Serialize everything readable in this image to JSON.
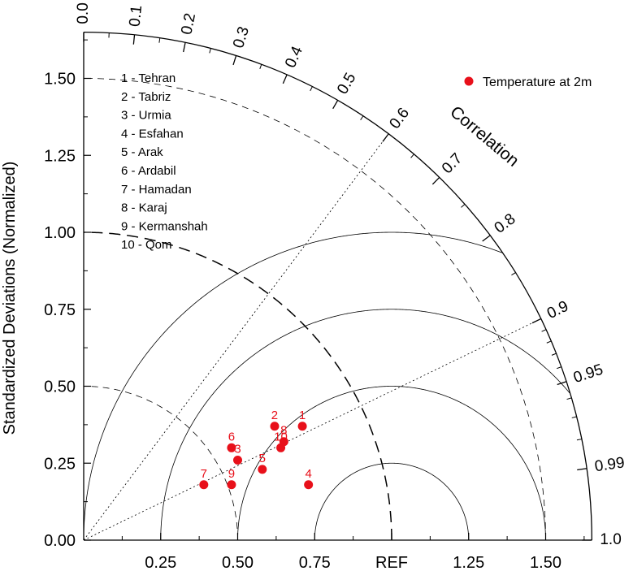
{
  "chart_data": {
    "type": "taylor",
    "ylabel": "Standardized Deviations (Normalized)",
    "angular_label": "Correlation",
    "ref_label": "REF",
    "ref_value": 1.0,
    "std_range": [
      0,
      1.65
    ],
    "y_ticks": [
      "0.00",
      "0.25",
      "0.50",
      "0.75",
      "1.00",
      "1.25",
      "1.50"
    ],
    "x_ticks": [
      "0.25",
      "0.50",
      "0.75",
      "REF",
      "1.25",
      "1.50"
    ],
    "correlation_ticks": [
      "0.0",
      "0.1",
      "0.2",
      "0.3",
      "0.4",
      "0.5",
      "0.6",
      "0.7",
      "0.8",
      "0.9",
      "0.95",
      "0.99",
      "1.0"
    ],
    "rms_arcs": [
      0.25,
      0.5,
      0.75,
      1.0
    ],
    "legend_text": "Temperature at 2m",
    "marker_color": "#e8101a",
    "stations": [
      "1 - Tehran",
      "2 - Tabriz",
      "3 - Urmia",
      "4 - Esfahan",
      "5 - Arak",
      "6 - Ardabil",
      "7 - Hamadan",
      "8 - Karaj",
      "9 - Kermanshah",
      "10 - Qom"
    ],
    "points": [
      {
        "id": "1",
        "x": 0.71,
        "y": 0.37
      },
      {
        "id": "2",
        "x": 0.62,
        "y": 0.37
      },
      {
        "id": "3",
        "x": 0.5,
        "y": 0.26
      },
      {
        "id": "4",
        "x": 0.73,
        "y": 0.18
      },
      {
        "id": "5",
        "x": 0.58,
        "y": 0.23
      },
      {
        "id": "6",
        "x": 0.48,
        "y": 0.3
      },
      {
        "id": "7",
        "x": 0.39,
        "y": 0.18
      },
      {
        "id": "8",
        "x": 0.65,
        "y": 0.32
      },
      {
        "id": "9",
        "x": 0.48,
        "y": 0.18
      },
      {
        "id": "10",
        "x": 0.64,
        "y": 0.3
      }
    ]
  }
}
